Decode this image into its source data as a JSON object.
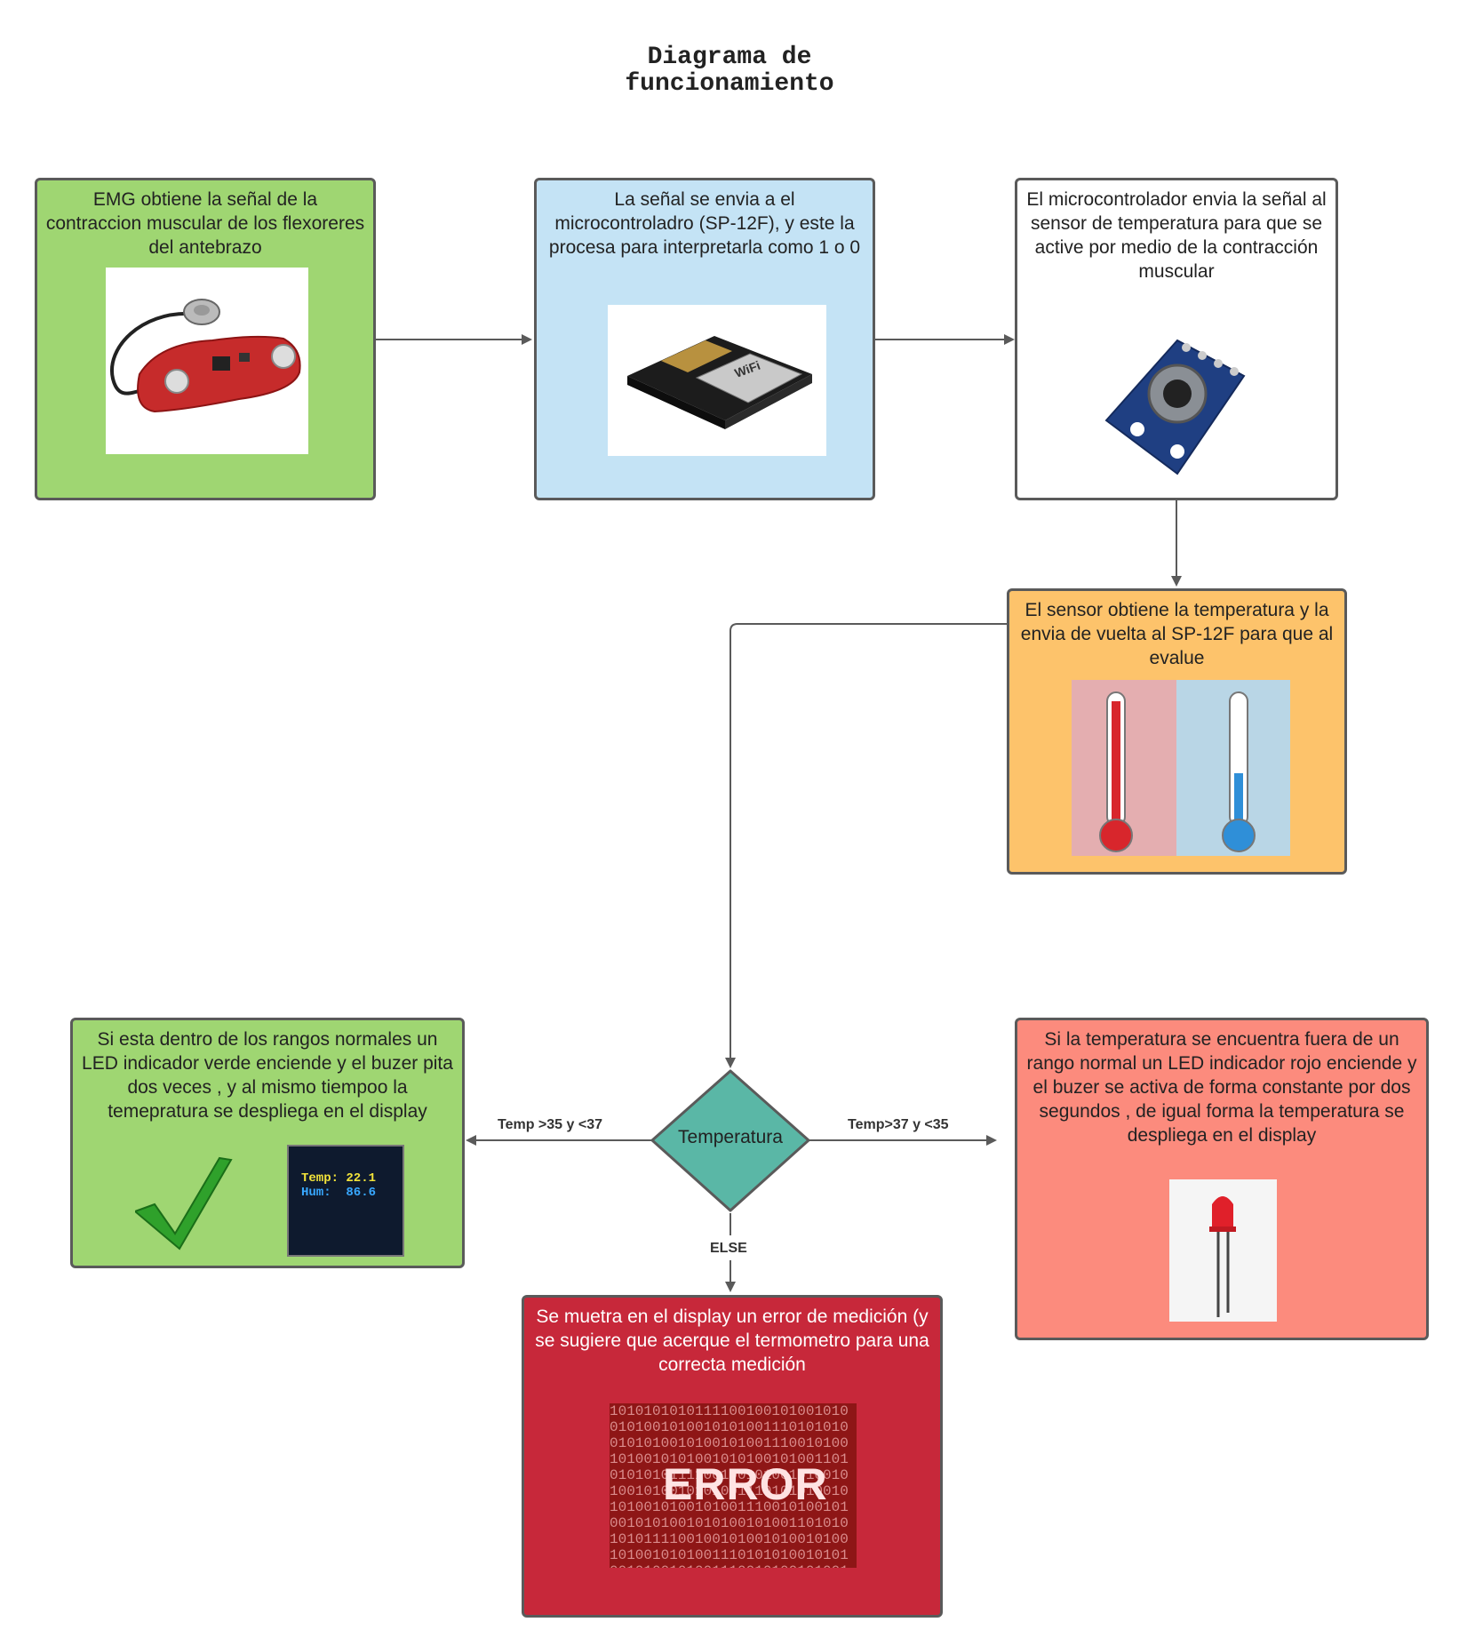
{
  "title": {
    "line1": "Diagrama de",
    "line2": "funcionamiento"
  },
  "nodes": {
    "emg": "EMG obtiene la señal de la contraccion muscular de los flexoreres del antebrazo",
    "micro": "La señal se envia a el microcontroladro (SP-12F), y este la procesa para interpretarla como 1 o 0",
    "sensor": "El microcontrolador envia la señal al sensor de temperatura para que se active por medio de la contracción muscular",
    "temp_read": "El sensor obtiene la temperatura y la envia de vuelta al SP-12F para que al evalue",
    "decision": "Temperatura",
    "normal": "Si esta dentro de los rangos normales un LED indicador verde enciende y el buzer pita dos veces , y al mismo tiempoo la temepratura se despliega en el display",
    "abnormal": "Si la temperatura se encuentra fuera de un rango normal un LED indicador rojo enciende y el buzer se activa de forma constante por dos segundos , de igual forma la temperatura se despliega en el display",
    "error": "Se muetra en el display un error de medición (y se sugiere que acerque el termometro para una correcta medición"
  },
  "edges": {
    "left_label": "Temp >35 y <37",
    "right_label": "Temp>37 y <35",
    "down_label": "ELSE"
  },
  "images": {
    "oled_line1": "Temp: 22.1",
    "oled_line2": "Hum:  86.6",
    "esp_wifi": "WiFi",
    "error_word": "ERROR",
    "binary": "1010101010111100100101001010010100101001010100111010101001010100101001010011100101001010010101001010100101001"
  },
  "colors": {
    "green": "#9fd672",
    "blue": "#c4e3f5",
    "orange": "#fdc36b",
    "salmon": "#fc8b7d",
    "red": "#c7283a",
    "teal": "#5ab7a6",
    "connector": "#5a5a5a"
  }
}
